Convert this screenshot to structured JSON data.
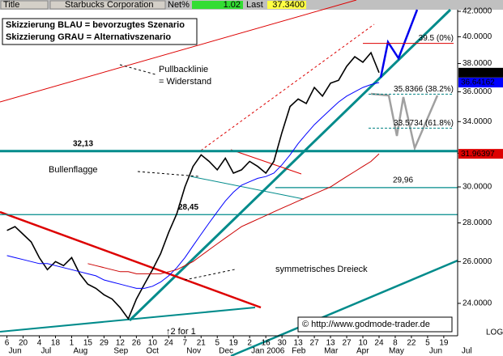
{
  "header": {
    "title_label": "Title",
    "name": "Starbucks Corporation",
    "net_label": "Net%",
    "net_value": "1.02",
    "last_label": "Last",
    "last_value": "37.3400"
  },
  "chart_data": {
    "type": "line",
    "log_scale": true,
    "scale_label": "LOG",
    "x": [
      "2005-06-06",
      "2005-06-13",
      "2005-06-20",
      "2005-06-27",
      "2005-07-04",
      "2005-07-11",
      "2005-07-18",
      "2005-07-25",
      "2005-08-01",
      "2005-08-08",
      "2005-08-15",
      "2005-08-22",
      "2005-08-29",
      "2005-09-05",
      "2005-09-12",
      "2005-09-19",
      "2005-09-26",
      "2005-10-03",
      "2005-10-10",
      "2005-10-17",
      "2005-10-24",
      "2005-10-31",
      "2005-11-07",
      "2005-11-14",
      "2005-11-21",
      "2005-11-28",
      "2005-12-05",
      "2005-12-12",
      "2005-12-19",
      "2005-12-26",
      "2006-01-02",
      "2006-01-09",
      "2006-01-16",
      "2006-01-23",
      "2006-01-30",
      "2006-02-06",
      "2006-02-13",
      "2006-02-20",
      "2006-02-27",
      "2006-03-06",
      "2006-03-13",
      "2006-03-20",
      "2006-03-27",
      "2006-04-03",
      "2006-04-10",
      "2006-04-17",
      "2006-04-24"
    ],
    "series": [
      {
        "color": "#000000",
        "values": [
          27.6,
          27.8,
          27.4,
          27.0,
          26.2,
          25.6,
          26.0,
          25.8,
          26.2,
          25.4,
          24.9,
          24.7,
          24.4,
          24.2,
          23.8,
          23.3,
          24.2,
          24.9,
          25.6,
          26.4,
          27.5,
          28.5,
          30.0,
          31.2,
          31.9,
          31.5,
          31.0,
          31.7,
          30.8,
          31.0,
          31.5,
          31.2,
          30.8,
          31.5,
          33.3,
          35.0,
          35.5,
          35.2,
          36.3,
          35.7,
          36.6,
          36.8,
          37.8,
          38.5,
          38.1,
          38.8,
          37.34
        ]
      },
      {
        "color": "#0000ff",
        "values": [
          26.3,
          26.2,
          26.1,
          26.0,
          25.9,
          25.9,
          25.8,
          25.7,
          25.6,
          25.5,
          25.4,
          25.3,
          25.1,
          25.0,
          24.9,
          24.8,
          24.7,
          24.7,
          24.8,
          25.0,
          25.3,
          25.7,
          26.2,
          26.8,
          27.4,
          28.0,
          28.6,
          29.2,
          29.7,
          30.1,
          30.3,
          30.5,
          30.6,
          30.8,
          31.3,
          31.9,
          32.6,
          33.2,
          33.8,
          34.3,
          34.8,
          35.3,
          35.7,
          36.0,
          36.3,
          36.5,
          36.64162
        ]
      },
      {
        "color": "#cc0000",
        "values": [
          null,
          null,
          null,
          null,
          null,
          null,
          null,
          null,
          null,
          null,
          25.9,
          25.8,
          25.7,
          25.6,
          25.5,
          25.5,
          25.4,
          25.4,
          25.4,
          25.4,
          25.5,
          25.6,
          25.8,
          26.0,
          26.3,
          26.6,
          26.9,
          27.2,
          27.5,
          27.8,
          28.0,
          28.2,
          28.4,
          28.6,
          28.8,
          29.0,
          29.2,
          29.4,
          29.6,
          29.8,
          30.0,
          30.3,
          30.6,
          30.9,
          31.2,
          31.5,
          31.96397
        ]
      }
    ],
    "xlim": [
      "2005-05-31",
      "2006-07-01"
    ],
    "xticks": [
      {
        "value": "2005-06-06",
        "label": "6"
      },
      {
        "value": "2005-06-20",
        "label": "20"
      },
      {
        "value": "2005-07-04",
        "label": "4"
      },
      {
        "value": "2005-07-18",
        "label": "18"
      },
      {
        "value": "2005-08-01",
        "label": "1"
      },
      {
        "value": "2005-08-15",
        "label": "15"
      },
      {
        "value": "2005-08-29",
        "label": "29"
      },
      {
        "value": "2005-09-12",
        "label": "12"
      },
      {
        "value": "2005-09-26",
        "label": "26"
      },
      {
        "value": "2005-10-10",
        "label": "10"
      },
      {
        "value": "2005-10-24",
        "label": "24"
      },
      {
        "value": "2005-11-07",
        "label": "7"
      },
      {
        "value": "2005-11-21",
        "label": "21"
      },
      {
        "value": "2005-12-05",
        "label": "5"
      },
      {
        "value": "2005-12-19",
        "label": "19"
      },
      {
        "value": "2006-01-02",
        "label": "2"
      },
      {
        "value": "2006-01-16",
        "label": "16"
      },
      {
        "value": "2006-01-30",
        "label": "30"
      },
      {
        "value": "2006-02-13",
        "label": "13"
      },
      {
        "value": "2006-02-27",
        "label": "27"
      },
      {
        "value": "2006-03-13",
        "label": "13"
      },
      {
        "value": "2006-03-27",
        "label": "27"
      },
      {
        "value": "2006-04-10",
        "label": "10"
      },
      {
        "value": "2006-04-24",
        "label": "24"
      },
      {
        "value": "2006-05-08",
        "label": "8"
      },
      {
        "value": "2006-05-22",
        "label": "22"
      },
      {
        "value": "2006-06-05",
        "label": "5"
      },
      {
        "value": "2006-06-19",
        "label": "19"
      }
    ],
    "month_ticks": [
      {
        "value": "2005-06-06",
        "label": "Jun"
      },
      {
        "value": "2005-07-04",
        "label": "Jul"
      },
      {
        "value": "2005-08-01",
        "label": "Aug"
      },
      {
        "value": "2005-09-05",
        "label": "Sep"
      },
      {
        "value": "2005-10-03",
        "label": "Oct"
      },
      {
        "value": "2005-11-07",
        "label": "Nov"
      },
      {
        "value": "2005-12-05",
        "label": "Dec"
      },
      {
        "value": "2006-01-02",
        "label": "Jan 2006"
      },
      {
        "value": "2006-02-06",
        "label": "Feb"
      },
      {
        "value": "2006-03-06",
        "label": "Mar"
      },
      {
        "value": "2006-04-03",
        "label": "Apr"
      },
      {
        "value": "2006-05-01",
        "label": "May"
      },
      {
        "value": "2006-06-05",
        "label": "Jun"
      },
      {
        "value": "2006-07-03",
        "label": "Jul"
      }
    ],
    "ylim": [
      22.66,
      42.13
    ],
    "yticks": [
      {
        "value": 42,
        "label": "42.0000"
      },
      {
        "value": 40,
        "label": "40.0000"
      },
      {
        "value": 38,
        "label": "38.0000"
      },
      {
        "value": 36,
        "label": "36.0000"
      },
      {
        "value": 34,
        "label": "34.0000"
      },
      {
        "value": 32,
        "label": "32.0000"
      },
      {
        "value": 30,
        "label": "30.0000"
      },
      {
        "value": 28,
        "label": "28.0000"
      },
      {
        "value": 26,
        "label": "26.0000"
      },
      {
        "value": 24,
        "label": "24.0000"
      }
    ],
    "fib_levels": [
      {
        "value": 39.5,
        "label": "39.5 (0%)",
        "color": "#dd0000"
      },
      {
        "value": 35.8366,
        "label": "35.8366 (38.2%)",
        "color": "#008080"
      },
      {
        "value": 33.5734,
        "label": "33.5734 (61.8%)",
        "color": "#008080"
      }
    ],
    "hlines": [
      {
        "value": 32.13,
        "label": "32,13"
      },
      {
        "value": 29.96,
        "label": "29,96"
      },
      {
        "value": 28.45,
        "label": "28,45"
      }
    ],
    "annotations": [
      "Skizzierung BLAU = bevorzugtes Szenario",
      "Skizzierung GRAU = Alternativszenario",
      "Pullbacklinie",
      "= Widerstand",
      "Bullenflagge",
      "symmetrisches Dreieck",
      "↑2 for 1",
      "© http://www.godmode-trader.de"
    ]
  }
}
